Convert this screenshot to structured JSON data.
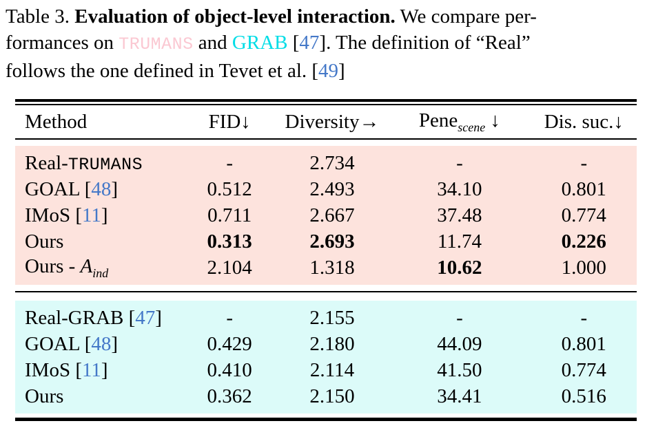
{
  "caption": {
    "line1": {
      "normal1": "Table 3. ",
      "bold": "Evaluation of object-level interaction.",
      "normal2": " We compare per-"
    },
    "line2": {
      "normal1": "formances on ",
      "trumans": "TRUMANS",
      "normal2": " and ",
      "grab": "GRAB",
      "normal3": " [",
      "cite": "47",
      "normal4": "]. The definition of “Real”"
    },
    "line3": {
      "normal1": "follows the one defined in Tevet et al. [",
      "cite": "49",
      "normal2": "]"
    }
  },
  "table": {
    "header": {
      "method": "Method",
      "fid": "FID↓",
      "diversity": "Diversity→",
      "pene_base": "Pene",
      "pene_sub": "scene",
      "pene_arrow": " ↓",
      "dis": "Dis. suc.↓"
    },
    "sections": [
      {
        "name": "TRUMANS",
        "bg": "#fde3dd",
        "rows": [
          {
            "method": {
              "text": "Real-",
              "mono": "TRUMANS"
            },
            "fid": "-",
            "diversity": "2.734",
            "pene": "-",
            "dis": "-"
          },
          {
            "method": {
              "text": "GOAL [",
              "cite": "48",
              "close": "]"
            },
            "fid": "0.512",
            "diversity": "2.493",
            "pene": "34.10",
            "dis": "0.801"
          },
          {
            "method": {
              "text": "IMoS [",
              "cite": "11",
              "close": "]"
            },
            "fid": "0.711",
            "diversity": "2.667",
            "pene": "37.48",
            "dis": "0.774"
          },
          {
            "method": {
              "text": "Ours"
            },
            "fid": "0.313",
            "diversity": "2.693",
            "pene": "11.74",
            "dis": "0.226"
          },
          {
            "method": {
              "text": "Ours - ",
              "script": "A",
              "sub": "ind"
            },
            "fid": "2.104",
            "diversity": "1.318",
            "pene": "10.62",
            "dis": "1.000"
          }
        ]
      },
      {
        "name": "GRAB",
        "bg": "#dcfbf9",
        "rows": [
          {
            "method": {
              "text": "Real-GRAB [",
              "cite": "47",
              "close": "]"
            },
            "fid": "-",
            "diversity": "2.155",
            "pene": "-",
            "dis": "-"
          },
          {
            "method": {
              "text": "GOAL [",
              "cite": "48",
              "close": "]"
            },
            "fid": "0.429",
            "diversity": "2.180",
            "pene": "44.09",
            "dis": "0.801"
          },
          {
            "method": {
              "text": "IMoS [",
              "cite": "11",
              "close": "]"
            },
            "fid": "0.410",
            "diversity": "2.114",
            "pene": "41.50",
            "dis": "0.774"
          },
          {
            "method": {
              "text": "Ours"
            },
            "fid": "0.362",
            "diversity": "2.150",
            "pene": "34.41",
            "dis": "0.516"
          }
        ]
      }
    ]
  },
  "colors": {
    "trumans_text": "#fbc8d2",
    "grab_text": "#00dde6",
    "citation": "#4478c8",
    "section_trumans_bg": "#fde3dd",
    "section_grab_bg": "#dcfbf9"
  }
}
